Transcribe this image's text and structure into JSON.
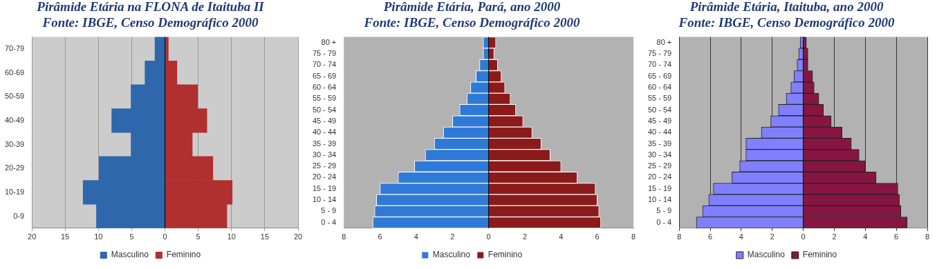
{
  "chart_data": [
    {
      "type": "bar",
      "orientation": "horizontal",
      "stacked": true,
      "title": "Pirâmide Etária na FLONA de Itaituba II",
      "subtitle": "Fonte: IBGE, Censo Demográfico 2000",
      "categories": [
        "70-79",
        "60-69",
        "50-59",
        "40-49",
        "30-39",
        "20-29",
        "10-19",
        "0-9"
      ],
      "series": [
        {
          "name": "Masculino",
          "color": "#2e67ab",
          "values": [
            -1.5,
            -3.0,
            -5.1,
            -8.0,
            -5.1,
            -9.9,
            -12.3,
            -10.3
          ]
        },
        {
          "name": "Feminino",
          "color": "#b03030",
          "values": [
            0.5,
            1.8,
            4.9,
            6.3,
            4.1,
            7.2,
            10.1,
            9.3
          ]
        }
      ],
      "xlim": [
        -20,
        20
      ],
      "xticks": [
        {
          "value": -20,
          "label": "20"
        },
        {
          "value": -15,
          "label": "15"
        },
        {
          "value": -10,
          "label": "10"
        },
        {
          "value": -5,
          "label": "5"
        },
        0,
        5,
        10,
        15,
        20
      ],
      "grid": "x",
      "legend": "bottom"
    },
    {
      "type": "bar",
      "orientation": "horizontal",
      "stacked": true,
      "title": "Pirâmide Etária, Pará, ano 2000",
      "subtitle": "Fonte: IBGE, Censo Demográfico 2000",
      "categories": [
        "80 +",
        "75 - 79",
        "70 - 74",
        "65 - 69",
        "60 - 64",
        "55 - 59",
        "50 - 54",
        "45 - 49",
        "40 - 44",
        "35 - 39",
        "30 - 34",
        "25 - 29",
        "20 - 24",
        "15 - 19",
        "10 - 14",
        "5 - 9",
        "0 - 4"
      ],
      "series": [
        {
          "name": "Masculino",
          "color": "#2f7ad6",
          "values": [
            -0.3,
            -0.3,
            -0.5,
            -0.7,
            -1.0,
            -1.2,
            -1.6,
            -2.0,
            -2.5,
            -3.0,
            -3.5,
            -4.1,
            -5.0,
            -6.0,
            -6.2,
            -6.3,
            -6.4
          ]
        },
        {
          "name": "Feminino",
          "color": "#8b1a1a",
          "values": [
            0.4,
            0.3,
            0.5,
            0.7,
            0.9,
            1.2,
            1.5,
            1.9,
            2.4,
            2.9,
            3.4,
            4.0,
            4.9,
            5.9,
            6.0,
            6.1,
            6.2
          ]
        }
      ],
      "xlim": [
        -8,
        8
      ],
      "xticks": [
        {
          "value": -8,
          "label": "8"
        },
        {
          "value": -6,
          "label": "6"
        },
        {
          "value": -4,
          "label": "4"
        },
        {
          "value": -2,
          "label": "2"
        },
        0,
        2,
        4,
        6,
        8
      ],
      "legend": "bottom"
    },
    {
      "type": "bar",
      "orientation": "horizontal",
      "stacked": true,
      "title": "Pirâmide Etária, Itaituba, ano 2000",
      "subtitle": "Fonte: IBGE, Censo Demográfico 2000",
      "categories": [
        "80 +",
        "75 - 79",
        "70 - 74",
        "65 - 69",
        "60 - 64",
        "55 - 59",
        "50 - 54",
        "45 - 49",
        "40 - 44",
        "35 - 39",
        "30 - 34",
        "25 - 29",
        "20 - 24",
        "15 - 19",
        "10 - 14",
        "5 - 9",
        "0 - 4"
      ],
      "series": [
        {
          "name": "Masculino",
          "color": "#8080ff",
          "values": [
            -0.2,
            -0.3,
            -0.4,
            -0.6,
            -0.8,
            -1.1,
            -1.6,
            -2.1,
            -2.7,
            -3.7,
            -3.7,
            -4.1,
            -4.6,
            -5.8,
            -6.1,
            -6.5,
            -6.9
          ]
        },
        {
          "name": "Feminino",
          "color": "#861541",
          "values": [
            0.2,
            0.3,
            0.3,
            0.6,
            0.7,
            1.0,
            1.3,
            1.8,
            2.5,
            3.1,
            3.6,
            4.0,
            4.7,
            6.1,
            6.2,
            6.3,
            6.7
          ]
        }
      ],
      "xlim": [
        -8,
        8
      ],
      "xticks": [
        {
          "value": -8,
          "label": "8"
        },
        {
          "value": -6,
          "label": "6"
        },
        {
          "value": -4,
          "label": "4"
        },
        {
          "value": -2,
          "label": "2"
        },
        0,
        2,
        4,
        6,
        8
      ],
      "grid": "x",
      "legend": "bottom"
    }
  ]
}
